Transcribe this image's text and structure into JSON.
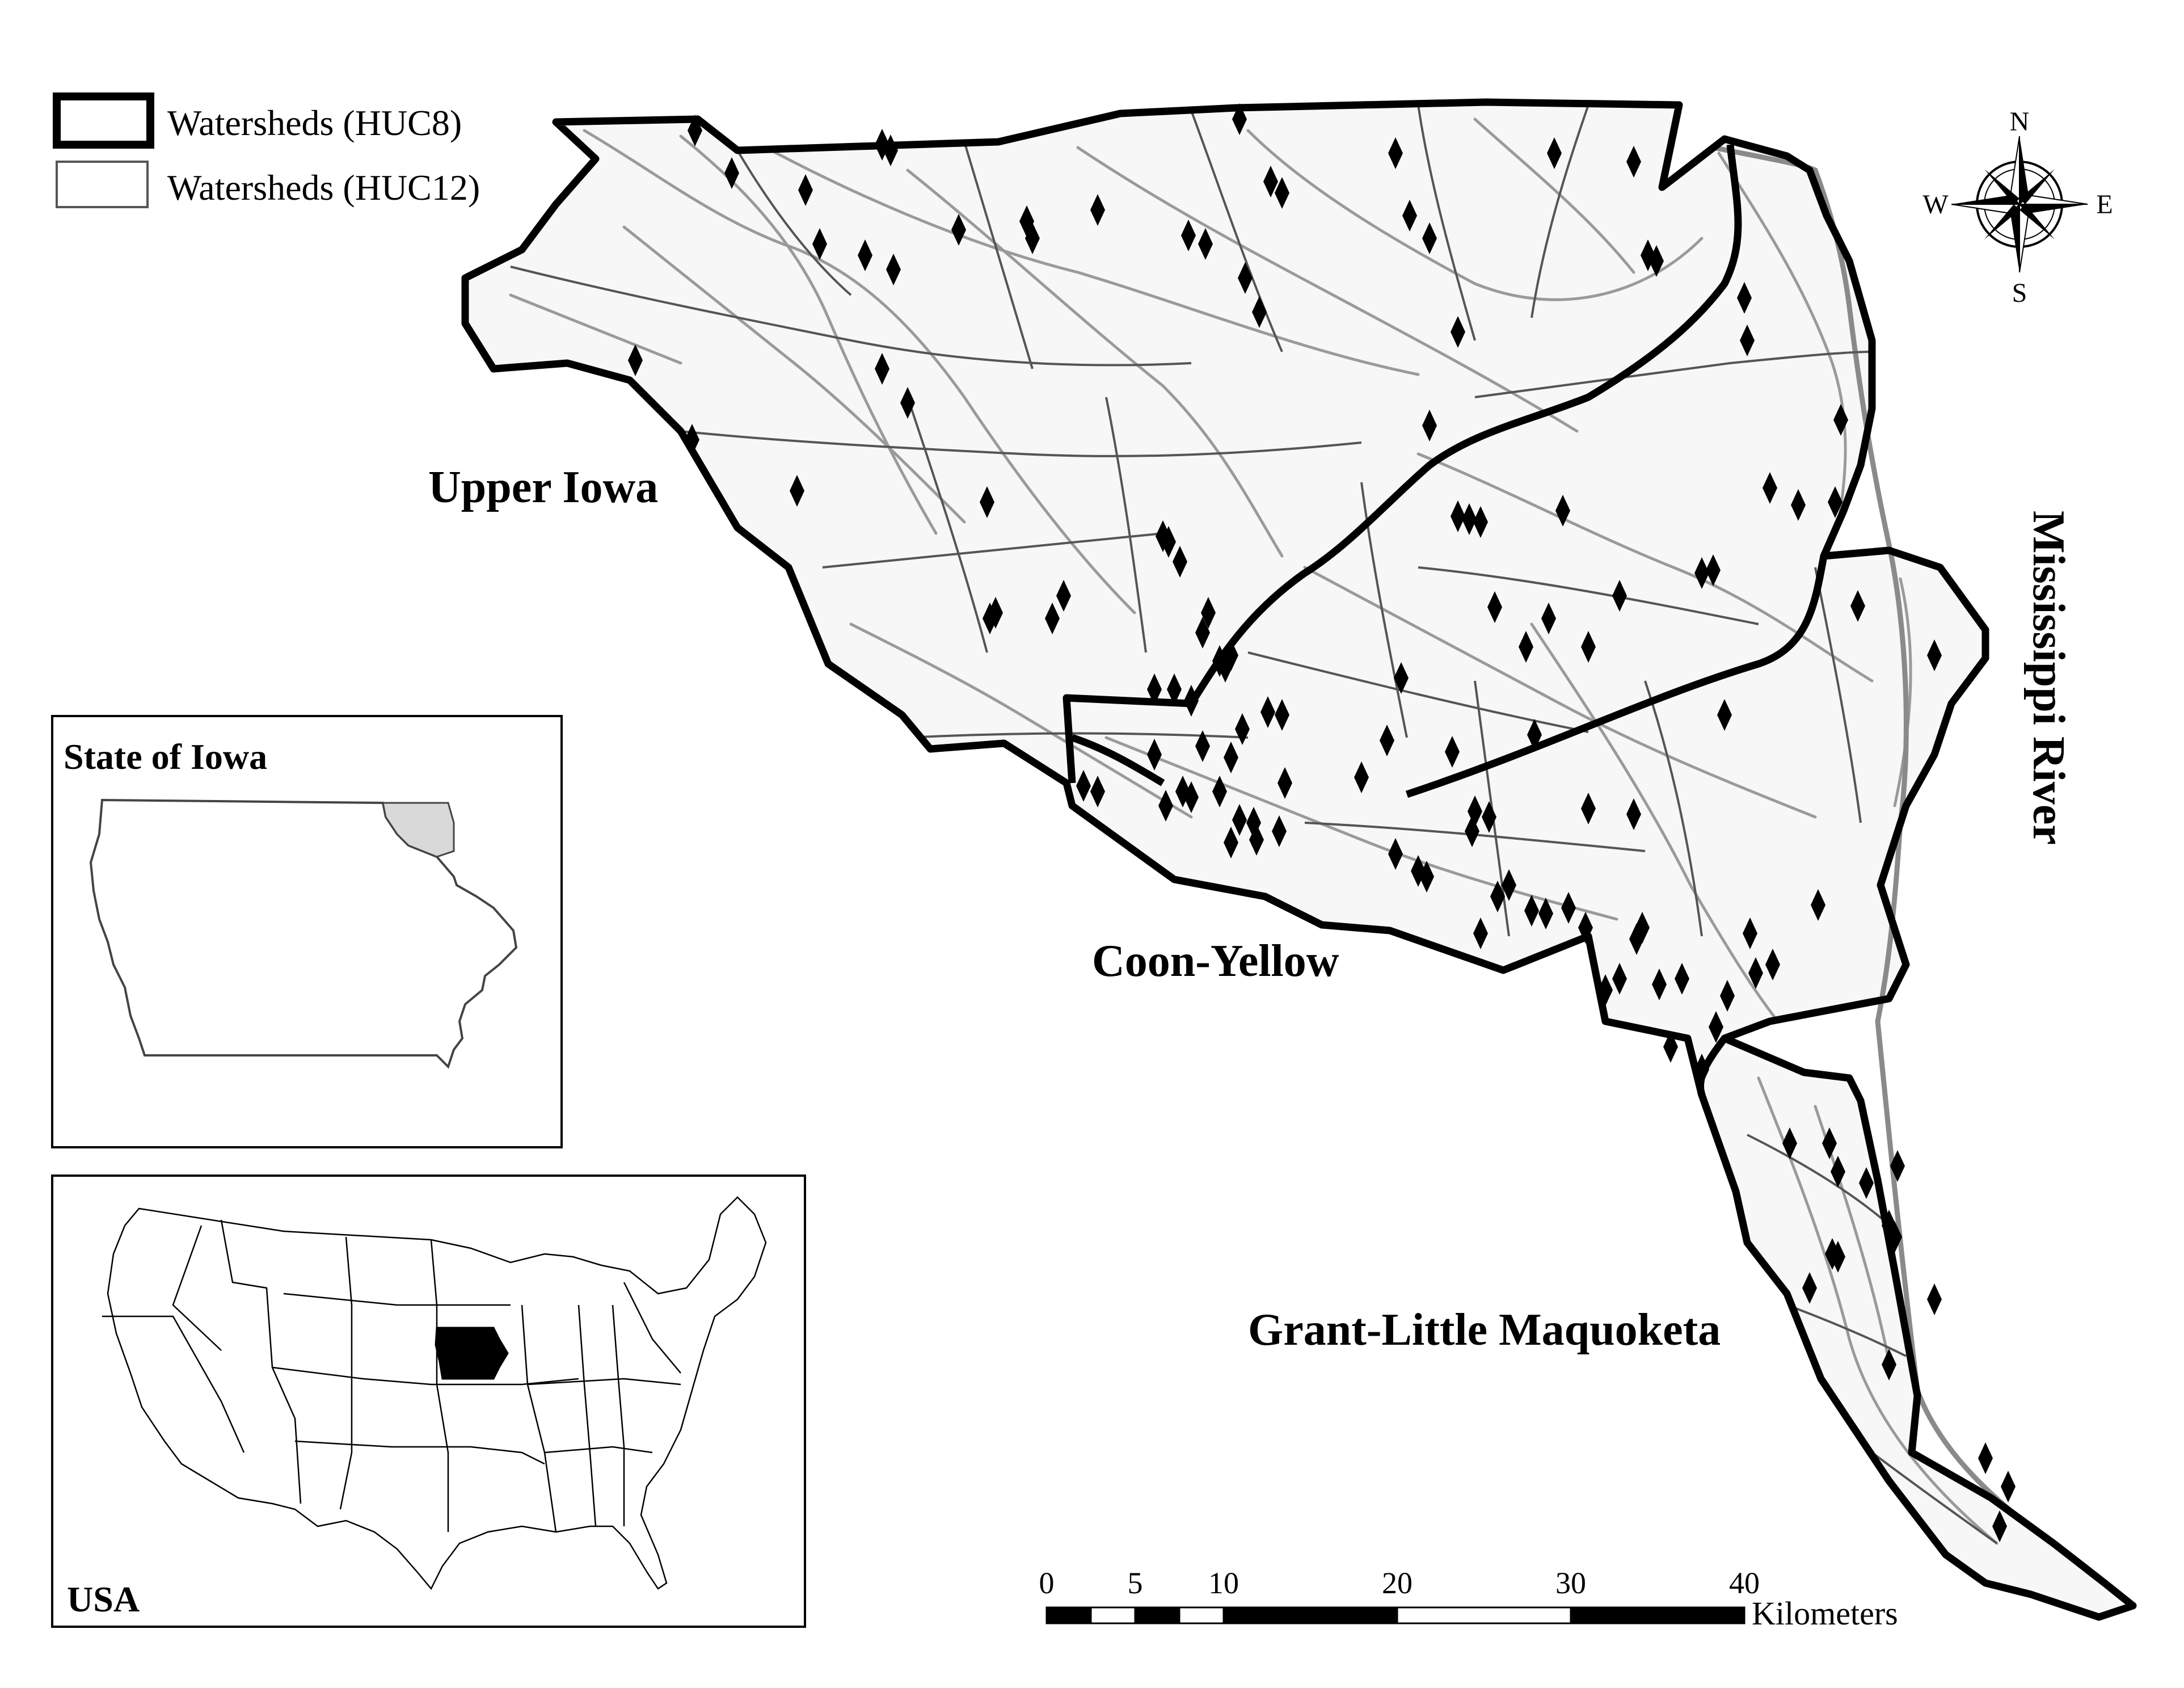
{
  "legend": {
    "huc8_label": "Watersheds (HUC8)",
    "huc12_label": "Watersheds (HUC12)"
  },
  "regions": {
    "upper_iowa": "Upper Iowa",
    "coon_yellow": "Coon-Yellow",
    "grant_little_maquoketa": "Grant-Little Maquoketa"
  },
  "river_label": "Mississippi River",
  "compass": {
    "n": "N",
    "s": "S",
    "e": "E",
    "w": "W"
  },
  "scale_bar": {
    "ticks": [
      "0",
      "5",
      "10",
      "20",
      "30",
      "40"
    ],
    "unit": "Kilometers"
  },
  "inset_iowa": {
    "title": "State of Iowa"
  },
  "inset_usa": {
    "title": "USA"
  },
  "colors": {
    "boundary": "#000000",
    "huc12_line": "#555555",
    "stream": "#9a9a9a",
    "site_marker": "#000000",
    "study_area_inset": "#d9d9d9"
  },
  "icons": {
    "site": "diamond-icon",
    "compass": "compass-rose-icon"
  }
}
